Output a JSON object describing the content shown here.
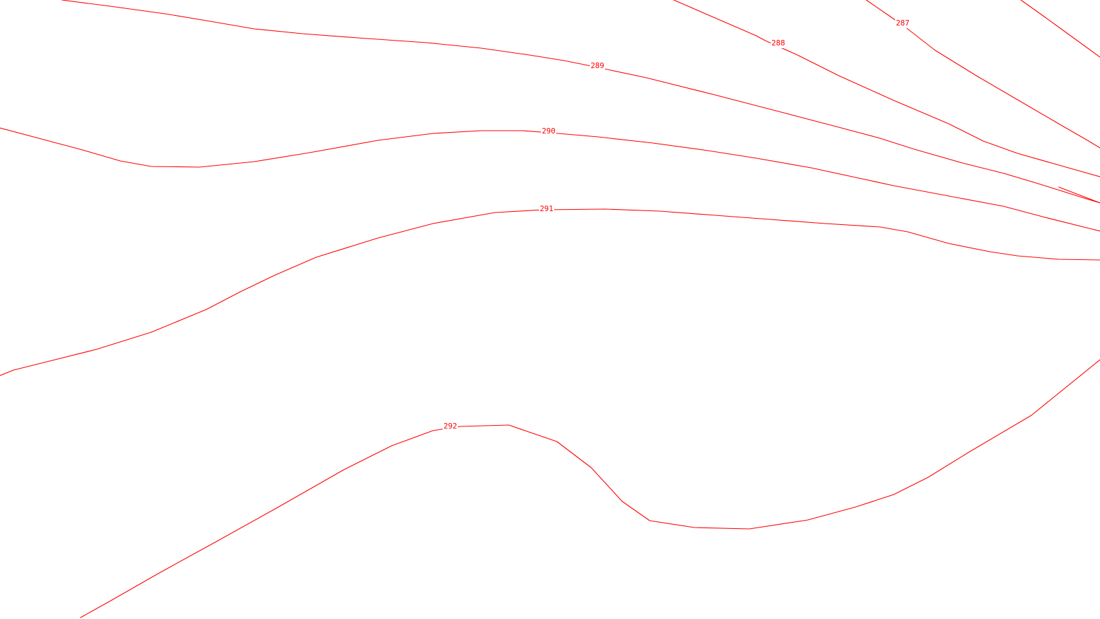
{
  "map": {
    "type": "isoline-contour-map",
    "line_color": "#ff0000",
    "background_color": "#ffffff"
  },
  "contours": [
    {
      "id": "c287a",
      "level": "287"
    },
    {
      "id": "c287b",
      "level": ""
    },
    {
      "id": "c288a",
      "level": "288"
    },
    {
      "id": "c288b",
      "level": ""
    },
    {
      "id": "c289",
      "level": "289"
    },
    {
      "id": "c290",
      "level": "290"
    },
    {
      "id": "c291",
      "level": "291"
    },
    {
      "id": "c292",
      "level": "292"
    }
  ]
}
